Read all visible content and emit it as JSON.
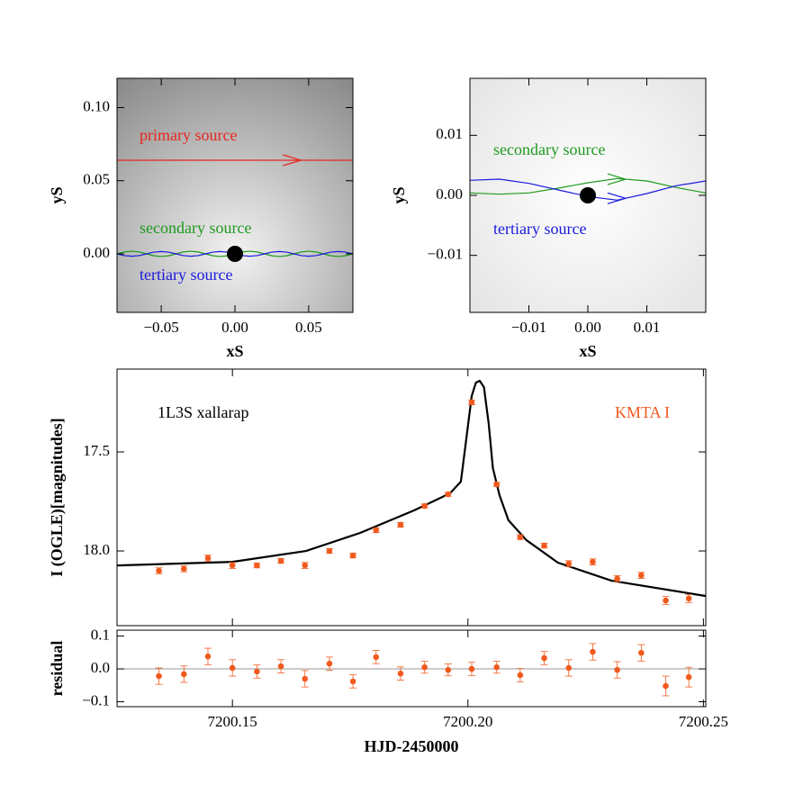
{
  "chart_data": [
    {
      "type": "line",
      "xlabel": "xS",
      "ylabel": "yS",
      "xlim": [
        -0.08,
        0.08
      ],
      "ylim": [
        -0.04,
        0.12
      ],
      "xticks": [
        {
          "value": -0.05,
          "label": "−0.05"
        },
        {
          "value": 0,
          "label": "0.00"
        },
        0.05
      ],
      "yticks": [
        {
          "value": 0,
          "label": "0.00"
        },
        0.05,
        {
          "value": 0.1,
          "label": "0.10"
        }
      ],
      "lens": {
        "x": 0,
        "y": 0
      },
      "series": [
        {
          "name": "primary source",
          "color": "#e8261f",
          "x": [
            -0.08,
            0.08
          ],
          "y": [
            0.064,
            0.064
          ]
        },
        {
          "name": "secondary source",
          "color": "#1f9a1f",
          "x": [
            -0.08,
            -0.075,
            -0.07,
            -0.065,
            -0.06,
            -0.055,
            -0.05,
            -0.045,
            -0.04,
            -0.035,
            -0.03,
            -0.025,
            -0.02,
            -0.015,
            -0.01,
            -0.005,
            0,
            0.005,
            0.01,
            0.015,
            0.02,
            0.025,
            0.03,
            0.035,
            0.04,
            0.045,
            0.05,
            0.055,
            0.06,
            0.065,
            0.07,
            0.075,
            0.08
          ],
          "y": [
            0,
            0.0013,
            0.0018,
            0.0013,
            0,
            -0.0013,
            -0.0018,
            -0.0013,
            0,
            0.0013,
            0.0018,
            0.0013,
            0,
            -0.0013,
            -0.0018,
            -0.0013,
            0,
            0.0013,
            0.0018,
            0.0013,
            0,
            -0.0013,
            -0.0018,
            -0.0013,
            0,
            0.0013,
            0.0018,
            0.0013,
            0,
            -0.0013,
            -0.0018,
            -0.0013,
            0
          ]
        },
        {
          "name": "tertiary source",
          "color": "#1a1adc",
          "x": [
            -0.08,
            -0.075,
            -0.07,
            -0.065,
            -0.06,
            -0.055,
            -0.05,
            -0.045,
            -0.04,
            -0.035,
            -0.03,
            -0.025,
            -0.02,
            -0.015,
            -0.01,
            -0.005,
            0,
            0.005,
            0.01,
            0.015,
            0.02,
            0.025,
            0.03,
            0.035,
            0.04,
            0.045,
            0.05,
            0.055,
            0.06,
            0.065,
            0.07,
            0.075,
            0.08
          ],
          "y": [
            0,
            -0.0012,
            -0.0016,
            -0.0012,
            0,
            0.0012,
            0.0016,
            0.0012,
            0,
            -0.0012,
            -0.0016,
            -0.0012,
            0,
            0.0012,
            0.0016,
            0.0012,
            0,
            -0.0012,
            -0.0016,
            -0.0012,
            0,
            0.0012,
            0.0016,
            0.0012,
            0,
            -0.0012,
            -0.0016,
            -0.0012,
            0,
            0.0012,
            0.0016,
            0.0012,
            0
          ]
        }
      ]
    },
    {
      "type": "line",
      "xlabel": "xS",
      "ylabel": "yS",
      "xlim": [
        -0.02,
        0.02
      ],
      "ylim": [
        -0.0195,
        0.0195
      ],
      "xticks": [
        {
          "value": -0.01,
          "label": "−0.01"
        },
        {
          "value": 0,
          "label": "0.00"
        },
        0.01
      ],
      "yticks": [
        {
          "value": -0.01,
          "label": "−0.01"
        },
        {
          "value": 0,
          "label": "0.00"
        },
        0.01
      ],
      "lens": {
        "x": 0,
        "y": 0
      },
      "series": [
        {
          "name": "secondary source",
          "color": "#1f9a1f",
          "x": [
            -0.02,
            -0.015,
            -0.01,
            -0.005,
            0,
            0.005,
            0.01,
            0.015,
            0.02
          ],
          "y": [
            0.0004,
            0.0002,
            0.0004,
            0.0012,
            0.0021,
            0.0028,
            0.0024,
            0.0013,
            0.0004
          ]
        },
        {
          "name": "tertiary source",
          "color": "#1a1adc",
          "x": [
            -0.02,
            -0.015,
            -0.01,
            -0.005,
            0,
            0.005,
            0.01,
            0.015,
            0.02
          ],
          "y": [
            0.0025,
            0.0027,
            0.002,
            0.0009,
            -0.0002,
            -0.0008,
            0.0003,
            0.0016,
            0.0024
          ]
        }
      ]
    },
    {
      "type": "scatter",
      "ylabel": "I (OGLE)[magnitudes]",
      "xlim": [
        7200.1255,
        7200.2505
      ],
      "ylim": [
        18.377,
        17.082
      ],
      "xticks": [
        7200.15,
        7200.2,
        7200.25
      ],
      "yticks": [
        17.5,
        {
          "value": 18,
          "label": "18.0"
        }
      ],
      "series": [
        {
          "name": "1L3S xallarap",
          "color": "#000000",
          "x": [
            7200.1256,
            7200.15,
            7200.1656,
            7200.1771,
            7200.1886,
            7200.1962,
            7200.1985,
            7200.1996,
            7200.2008,
            7200.2017,
            7200.2025,
            7200.2034,
            7200.2044,
            7200.2053,
            7200.2067,
            7200.2086,
            7200.2124,
            7200.2191,
            7200.2305,
            7200.2504
          ],
          "y": [
            18.073,
            18.055,
            18.0,
            17.909,
            17.795,
            17.709,
            17.65,
            17.445,
            17.218,
            17.15,
            17.141,
            17.173,
            17.355,
            17.582,
            17.718,
            17.845,
            17.945,
            18.059,
            18.15,
            18.227
          ]
        },
        {
          "name": "KMTA I",
          "color": "#f05a1e",
          "x": [
            7200.1344,
            7200.1397,
            7200.1448,
            7200.15,
            7200.1552,
            7200.1603,
            7200.1654,
            7200.1706,
            7200.1756,
            7200.1805,
            7200.1857,
            7200.1908,
            7200.1958,
            7200.2008,
            7200.2061,
            7200.2111,
            7200.2162,
            7200.2214,
            7200.2265,
            7200.2317,
            7200.2368,
            7200.242,
            7200.2469
          ],
          "y": [
            18.1,
            18.09,
            18.036,
            18.073,
            18.073,
            18.05,
            18.073,
            18.0,
            18.023,
            17.895,
            17.868,
            17.773,
            17.714,
            17.25,
            17.664,
            17.93,
            17.973,
            18.064,
            18.055,
            18.14,
            18.123,
            18.25,
            18.24
          ],
          "errors": [
            0.015,
            0.015,
            0.015,
            0.015,
            0.012,
            0.012,
            0.015,
            0.012,
            0.012,
            0.012,
            0.012,
            0.01,
            0.01,
            0.012,
            0.01,
            0.012,
            0.012,
            0.015,
            0.015,
            0.015,
            0.015,
            0.02,
            0.02
          ]
        }
      ]
    },
    {
      "type": "scatter",
      "ylabel": "residual",
      "xlabel": "HJD-2450000",
      "xlim": [
        7200.1255,
        7200.2505
      ],
      "ylim": [
        -0.115,
        0.118
      ],
      "xticks": [
        7200.15,
        {
          "value": 7200.2,
          "label": "7200.20"
        },
        7200.25
      ],
      "yticks": [
        {
          "value": -0.1,
          "label": "−0.1"
        },
        {
          "value": 0,
          "label": "0.0"
        },
        0.1
      ],
      "reference_line": 0,
      "series": [
        {
          "color": "#f05a1e",
          "x": [
            7200.1344,
            7200.1397,
            7200.1448,
            7200.15,
            7200.1552,
            7200.1603,
            7200.1654,
            7200.1706,
            7200.1756,
            7200.1805,
            7200.1857,
            7200.1908,
            7200.1958,
            7200.2008,
            7200.2061,
            7200.2111,
            7200.2162,
            7200.2214,
            7200.2265,
            7200.2317,
            7200.2368,
            7200.242,
            7200.2469
          ],
          "y": [
            -0.022,
            -0.016,
            0.038,
            0.003,
            -0.008,
            0.008,
            -0.03,
            0.016,
            -0.038,
            0.036,
            -0.014,
            0.005,
            -0.003,
            0.0,
            0.005,
            -0.019,
            0.033,
            0.003,
            0.052,
            -0.003,
            0.049,
            -0.052,
            -0.025
          ],
          "errors": [
            0.025,
            0.025,
            0.025,
            0.025,
            0.02,
            0.02,
            0.025,
            0.02,
            0.02,
            0.02,
            0.02,
            0.018,
            0.018,
            0.02,
            0.018,
            0.02,
            0.02,
            0.025,
            0.025,
            0.025,
            0.025,
            0.03,
            0.03
          ]
        }
      ]
    }
  ]
}
